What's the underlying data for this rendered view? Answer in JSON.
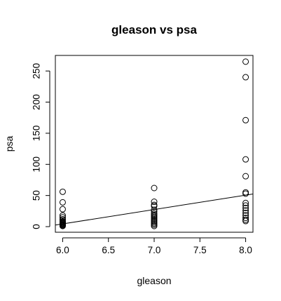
{
  "chart_data": {
    "type": "scatter",
    "title": "gleason vs psa",
    "xlabel": "gleason",
    "ylabel": "psa",
    "xlim": [
      5.92,
      8.08
    ],
    "ylim": [
      -9,
      275
    ],
    "x_ticks": [
      6.0,
      6.5,
      7.0,
      7.5,
      8.0
    ],
    "x_tick_labels": [
      "6.0",
      "6.5",
      "7.0",
      "7.5",
      "8.0"
    ],
    "y_ticks": [
      0,
      50,
      100,
      150,
      200,
      250
    ],
    "y_tick_labels": [
      "0",
      "50",
      "100",
      "150",
      "200",
      "250"
    ],
    "points": [
      {
        "x": 6,
        "y": 56
      },
      {
        "x": 6,
        "y": 39
      },
      {
        "x": 6,
        "y": 28
      },
      {
        "x": 6,
        "y": 18
      },
      {
        "x": 6,
        "y": 15
      },
      {
        "x": 6,
        "y": 12
      },
      {
        "x": 6,
        "y": 10
      },
      {
        "x": 6,
        "y": 8
      },
      {
        "x": 6,
        "y": 7
      },
      {
        "x": 6,
        "y": 6
      },
      {
        "x": 6,
        "y": 5
      },
      {
        "x": 6,
        "y": 4
      },
      {
        "x": 6,
        "y": 3
      },
      {
        "x": 6,
        "y": 2
      },
      {
        "x": 6,
        "y": 1
      },
      {
        "x": 7,
        "y": 62
      },
      {
        "x": 7,
        "y": 40
      },
      {
        "x": 7,
        "y": 35
      },
      {
        "x": 7,
        "y": 33
      },
      {
        "x": 7,
        "y": 27
      },
      {
        "x": 7,
        "y": 24
      },
      {
        "x": 7,
        "y": 21
      },
      {
        "x": 7,
        "y": 19
      },
      {
        "x": 7,
        "y": 17
      },
      {
        "x": 7,
        "y": 15
      },
      {
        "x": 7,
        "y": 13
      },
      {
        "x": 7,
        "y": 11
      },
      {
        "x": 7,
        "y": 9
      },
      {
        "x": 7,
        "y": 7
      },
      {
        "x": 7,
        "y": 5
      },
      {
        "x": 7,
        "y": 3
      },
      {
        "x": 7,
        "y": 1
      },
      {
        "x": 8,
        "y": 265
      },
      {
        "x": 8,
        "y": 240
      },
      {
        "x": 8,
        "y": 171
      },
      {
        "x": 8,
        "y": 108
      },
      {
        "x": 8,
        "y": 81
      },
      {
        "x": 8,
        "y": 55
      },
      {
        "x": 8,
        "y": 53
      },
      {
        "x": 8,
        "y": 38
      },
      {
        "x": 8,
        "y": 34
      },
      {
        "x": 8,
        "y": 30
      },
      {
        "x": 8,
        "y": 26
      },
      {
        "x": 8,
        "y": 22
      },
      {
        "x": 8,
        "y": 18
      },
      {
        "x": 8,
        "y": 14
      },
      {
        "x": 8,
        "y": 11
      },
      {
        "x": 8,
        "y": 9
      }
    ],
    "regression_line": {
      "intercept": -134.2,
      "slope": 23.1
    },
    "grid": false,
    "legend": "none"
  }
}
